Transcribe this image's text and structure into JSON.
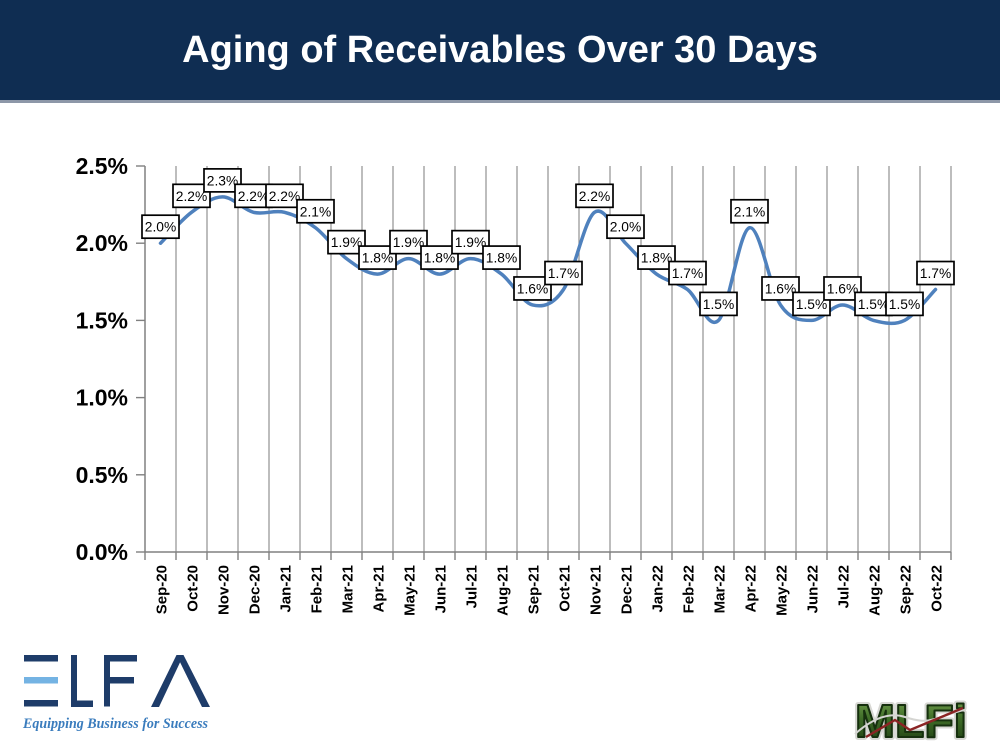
{
  "title": "Aging of Receivables Over 30 Days",
  "chart_data": {
    "type": "line",
    "title": "Aging of Receivables Over 30 Days",
    "categories": [
      "Sep-20",
      "Oct-20",
      "Nov-20",
      "Dec-20",
      "Jan-21",
      "Feb-21",
      "Mar-21",
      "Apr-21",
      "May-21",
      "Jun-21",
      "Jul-21",
      "Aug-21",
      "Sep-21",
      "Oct-21",
      "Nov-21",
      "Dec-21",
      "Jan-22",
      "Feb-22",
      "Mar-22",
      "Apr-22",
      "May-22",
      "Jun-22",
      "Jul-22",
      "Aug-22",
      "Sep-22",
      "Oct-22"
    ],
    "values": [
      2.0,
      2.2,
      2.3,
      2.2,
      2.2,
      2.1,
      1.9,
      1.8,
      1.9,
      1.8,
      1.9,
      1.8,
      1.6,
      1.7,
      2.2,
      2.0,
      1.8,
      1.7,
      1.5,
      2.1,
      1.6,
      1.5,
      1.6,
      1.5,
      1.5,
      1.7
    ],
    "data_labels": [
      "2.0%",
      "2.2%",
      "2.3%",
      "2.2%",
      "2.2%",
      "2.1%",
      "1.9%",
      "1.8%",
      "1.9%",
      "1.8%",
      "1.9%",
      "1.8%",
      "1.6%",
      "1.7%",
      "2.2%",
      "2.0%",
      "1.8%",
      "1.7%",
      "1.5%",
      "2.1%",
      "1.6%",
      "1.5%",
      "1.6%",
      "1.5%",
      "1.5%",
      "1.7%"
    ],
    "ylim": [
      0,
      2.5
    ],
    "ytick_labels": [
      "0.0%",
      "0.5%",
      "1.0%",
      "1.5%",
      "2.0%",
      "2.5%"
    ],
    "grid": "vertical-only",
    "legend": "none",
    "line_smooth": true
  },
  "colors": {
    "header_bg": "#0f2d52",
    "title_text": "#ffffff",
    "line": "#4f81bd",
    "gridline": "#919191",
    "axis": "#808080",
    "tick_label": "#000000",
    "label_box_bg": "#ffffff",
    "label_box_border": "#000000",
    "elfa_navy": "#1e3c69",
    "elfa_lightblue": "#74b3e3",
    "elfa_tagline_blue": "#3a7cbd",
    "mlfi_green_dark": "#1c3a10",
    "mlfi_green_mid": "#3f6d28",
    "mlfi_green_light": "#7aa653",
    "mlfi_red": "#8b2424",
    "mlfi_gray_line": "#d5d5d2"
  },
  "footer": {
    "elfa_logo_text": "ELFA",
    "elfa_tagline": "Equipping Business for Success",
    "mlfi_logo_text": "MLFi"
  }
}
